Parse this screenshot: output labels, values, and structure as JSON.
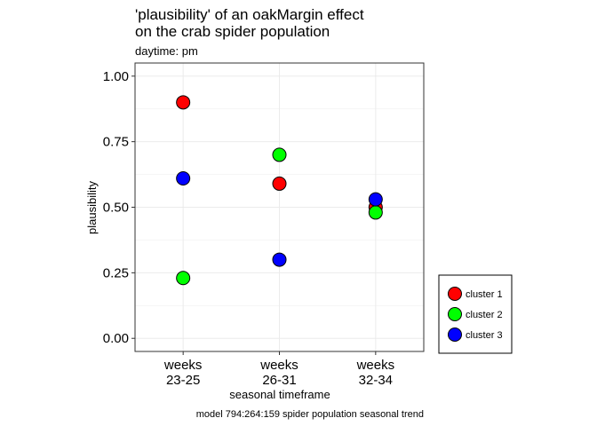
{
  "chart_data": {
    "type": "scatter",
    "title": "'plausibility' of an oakMargin effect\non the crab spider population",
    "subtitle": "daytime: pm",
    "xlabel": "seasonal timeframe",
    "ylabel": "plausibility",
    "caption": "model 794:264:159 spider population seasonal trend",
    "categories": [
      "weeks\n23-25",
      "weeks\n26-31",
      "weeks\n32-34"
    ],
    "ylim": [
      -0.05,
      1.05
    ],
    "yticks": [
      0.0,
      0.25,
      0.5,
      0.75,
      1.0
    ],
    "ytick_labels": [
      "0.00",
      "0.25",
      "0.50",
      "0.75",
      "1.00"
    ],
    "grid": true,
    "legend_position": "bottom-right",
    "series": [
      {
        "name": "cluster 1",
        "color": "#ff0000",
        "values": [
          0.9,
          0.59,
          0.5
        ]
      },
      {
        "name": "cluster 2",
        "color": "#00ff00",
        "values": [
          0.23,
          0.7,
          0.48
        ]
      },
      {
        "name": "cluster 3",
        "color": "#0000ff",
        "values": [
          0.61,
          0.3,
          0.53
        ]
      }
    ]
  }
}
